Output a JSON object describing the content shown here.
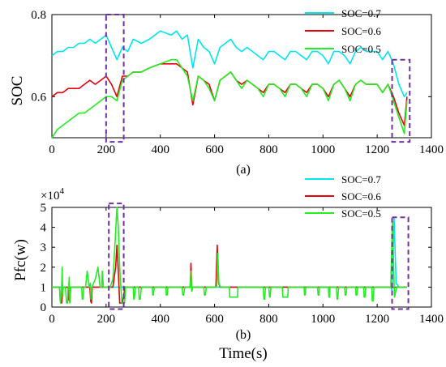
{
  "chart_data": [
    {
      "type": "line",
      "panel_label": "(a)",
      "ylabel": "SOC",
      "xlim": [
        0,
        1400
      ],
      "ylim": [
        0.5,
        0.8
      ],
      "x_ticks": [
        "0",
        "200",
        "400",
        "600",
        "800",
        "1000",
        "1200",
        "1400"
      ],
      "y_ticks": [
        "0.6",
        "0.8"
      ],
      "legend": "top-right",
      "series": [
        {
          "name": "SOC=0.7",
          "color": "#00e5ee",
          "x": [
            0,
            20,
            40,
            60,
            80,
            100,
            120,
            140,
            160,
            180,
            200,
            220,
            240,
            260,
            280,
            300,
            330,
            360,
            400,
            440,
            460,
            480,
            500,
            520,
            540,
            560,
            580,
            600,
            620,
            640,
            660,
            680,
            700,
            720,
            740,
            760,
            780,
            800,
            820,
            840,
            860,
            880,
            900,
            920,
            940,
            960,
            980,
            1000,
            1020,
            1040,
            1060,
            1080,
            1100,
            1120,
            1140,
            1160,
            1180,
            1200,
            1220,
            1240,
            1260,
            1280,
            1300,
            1310
          ],
          "y": [
            0.7,
            0.71,
            0.71,
            0.72,
            0.72,
            0.73,
            0.73,
            0.74,
            0.73,
            0.74,
            0.75,
            0.72,
            0.69,
            0.72,
            0.71,
            0.74,
            0.73,
            0.74,
            0.76,
            0.75,
            0.76,
            0.74,
            0.75,
            0.67,
            0.74,
            0.72,
            0.71,
            0.68,
            0.72,
            0.73,
            0.74,
            0.72,
            0.71,
            0.72,
            0.71,
            0.7,
            0.69,
            0.71,
            0.71,
            0.7,
            0.69,
            0.71,
            0.71,
            0.7,
            0.69,
            0.71,
            0.71,
            0.7,
            0.68,
            0.71,
            0.71,
            0.7,
            0.68,
            0.71,
            0.72,
            0.71,
            0.71,
            0.71,
            0.69,
            0.71,
            0.68,
            0.63,
            0.6,
            0.61
          ]
        },
        {
          "name": "SOC=0.6",
          "color": "#e8000b",
          "x": [
            0,
            20,
            40,
            60,
            80,
            100,
            120,
            140,
            160,
            180,
            200,
            220,
            240,
            260,
            280,
            300,
            330,
            360,
            400,
            440,
            460,
            480,
            500,
            520,
            540,
            560,
            580,
            600,
            620,
            640,
            660,
            680,
            700,
            720,
            740,
            760,
            780,
            800,
            820,
            840,
            860,
            880,
            900,
            920,
            940,
            960,
            980,
            1000,
            1020,
            1040,
            1060,
            1080,
            1100,
            1120,
            1140,
            1160,
            1180,
            1200,
            1220,
            1240,
            1260,
            1280,
            1300,
            1310
          ],
          "y": [
            0.6,
            0.61,
            0.61,
            0.62,
            0.62,
            0.62,
            0.63,
            0.64,
            0.63,
            0.64,
            0.65,
            0.63,
            0.6,
            0.65,
            0.65,
            0.66,
            0.66,
            0.67,
            0.68,
            0.68,
            0.68,
            0.67,
            0.66,
            0.58,
            0.65,
            0.64,
            0.63,
            0.59,
            0.64,
            0.65,
            0.66,
            0.64,
            0.63,
            0.64,
            0.63,
            0.62,
            0.61,
            0.63,
            0.63,
            0.62,
            0.61,
            0.63,
            0.63,
            0.62,
            0.61,
            0.63,
            0.63,
            0.62,
            0.6,
            0.63,
            0.64,
            0.62,
            0.6,
            0.63,
            0.64,
            0.63,
            0.63,
            0.63,
            0.61,
            0.63,
            0.6,
            0.56,
            0.53,
            0.6
          ]
        },
        {
          "name": "SOC=0.5",
          "color": "#22ee22",
          "x": [
            0,
            20,
            40,
            60,
            80,
            100,
            120,
            140,
            160,
            180,
            200,
            220,
            240,
            260,
            280,
            300,
            330,
            360,
            400,
            440,
            460,
            480,
            500,
            520,
            540,
            560,
            580,
            600,
            620,
            640,
            660,
            680,
            700,
            720,
            740,
            760,
            780,
            800,
            820,
            840,
            860,
            880,
            900,
            920,
            940,
            960,
            980,
            1000,
            1020,
            1040,
            1060,
            1080,
            1100,
            1120,
            1140,
            1160,
            1180,
            1200,
            1220,
            1240,
            1260,
            1280,
            1300,
            1310
          ],
          "y": [
            0.5,
            0.52,
            0.53,
            0.54,
            0.55,
            0.56,
            0.56,
            0.57,
            0.58,
            0.59,
            0.6,
            0.6,
            0.59,
            0.64,
            0.65,
            0.66,
            0.66,
            0.67,
            0.68,
            0.69,
            0.69,
            0.67,
            0.65,
            0.59,
            0.65,
            0.64,
            0.62,
            0.59,
            0.64,
            0.65,
            0.66,
            0.64,
            0.62,
            0.64,
            0.63,
            0.62,
            0.6,
            0.63,
            0.63,
            0.62,
            0.6,
            0.63,
            0.63,
            0.62,
            0.6,
            0.63,
            0.63,
            0.62,
            0.59,
            0.63,
            0.64,
            0.62,
            0.59,
            0.63,
            0.64,
            0.63,
            0.63,
            0.63,
            0.61,
            0.63,
            0.59,
            0.55,
            0.51,
            0.59
          ]
        }
      ],
      "highlight_boxes": [
        {
          "x": [
            200,
            265
          ],
          "y": [
            0.49,
            0.8
          ],
          "color": "#7030a0",
          "style": "dashed"
        },
        {
          "x": [
            1255,
            1320
          ],
          "y": [
            0.49,
            0.69
          ],
          "color": "#7030a0",
          "style": "dashed"
        }
      ]
    },
    {
      "type": "line",
      "panel_label": "(b)",
      "ylabel": "Pfc(w)",
      "xlabel": "Time(s)",
      "y_multiplier": "×10",
      "y_multiplier_exp": "4",
      "xlim": [
        0,
        1400
      ],
      "ylim": [
        0,
        50000
      ],
      "x_ticks": [
        "0",
        "200",
        "400",
        "600",
        "800",
        "1000",
        "1200",
        "1400"
      ],
      "y_ticks": [
        "0",
        "1",
        "2",
        "3",
        "4",
        "5"
      ],
      "legend": "top-right",
      "series": [
        {
          "name": "SOC=0.7",
          "color": "#00e5ee",
          "x": [
            0,
            1250,
            1255,
            1262,
            1270,
            1280,
            1290,
            1300,
            1310
          ],
          "y": [
            10000,
            10000,
            8000,
            45000,
            12000,
            10000,
            10000,
            10000,
            10000
          ]
        },
        {
          "name": "SOC=0.6",
          "color": "#e8000b",
          "x": [
            0,
            28,
            32,
            36,
            40,
            60,
            62,
            65,
            68,
            140,
            143,
            146,
            149,
            225,
            235,
            240,
            245,
            250,
            260,
            270,
            510,
            513,
            516,
            519,
            605,
            610,
            615,
            620,
            1310
          ],
          "y": [
            10000,
            10000,
            3000,
            2000,
            10000,
            10000,
            4000,
            3000,
            10000,
            10000,
            3000,
            2000,
            10000,
            10000,
            20000,
            31000,
            18000,
            2000,
            2000,
            10000,
            10000,
            22000,
            8000,
            10000,
            10000,
            31000,
            12000,
            10000,
            10000
          ]
        },
        {
          "name": "SOC=0.5",
          "color": "#22ee22",
          "x": [
            0,
            28,
            30,
            32,
            36,
            38,
            40,
            42,
            50,
            54,
            58,
            60,
            62,
            64,
            66,
            70,
            75,
            80,
            110,
            112,
            114,
            118,
            124,
            130,
            138,
            140,
            142,
            144,
            148,
            160,
            170,
            178,
            184,
            186,
            190,
            200,
            215,
            225,
            232,
            240,
            245,
            250,
            258,
            268,
            272,
            280,
            300,
            302,
            304,
            308,
            320,
            322,
            326,
            330,
            370,
            372,
            374,
            378,
            420,
            422,
            425,
            428,
            480,
            483,
            486,
            490,
            510,
            513,
            516,
            520,
            560,
            563,
            566,
            570,
            608,
            612,
            616,
            622,
            655,
            656,
            685,
            686,
            780,
            782,
            785,
            788,
            800,
            803,
            805,
            808,
            850,
            852,
            870,
            872,
            930,
            932,
            934,
            937,
            980,
            982,
            985,
            987,
            1020,
            1022,
            1024,
            1026,
            1050,
            1052,
            1054,
            1058,
            1080,
            1082,
            1085,
            1088,
            1120,
            1122,
            1125,
            1128,
            1150,
            1152,
            1155,
            1158,
            1180,
            1182,
            1185,
            1188,
            1250,
            1256,
            1264,
            1272,
            1280,
            1290,
            1300,
            1310
          ],
          "y": [
            10000,
            10000,
            4000,
            2000,
            10000,
            20000,
            5000,
            10000,
            10000,
            2000,
            2000,
            10000,
            10000,
            15000,
            2000,
            10000,
            10000,
            10000,
            10000,
            4000,
            4000,
            10000,
            10000,
            18000,
            10000,
            10000,
            12000,
            4000,
            10000,
            14000,
            20000,
            10000,
            10000,
            18000,
            10000,
            10000,
            10000,
            14000,
            30000,
            50000,
            40000,
            20000,
            2000,
            2000,
            10000,
            10000,
            10000,
            4000,
            4000,
            10000,
            10000,
            4000,
            4000,
            10000,
            10000,
            6000,
            6000,
            10000,
            10000,
            6000,
            6000,
            10000,
            10000,
            6000,
            6000,
            10000,
            10000,
            18000,
            8000,
            10000,
            10000,
            6000,
            6000,
            10000,
            10000,
            27000,
            12000,
            10000,
            10000,
            5000,
            5000,
            10000,
            10000,
            4000,
            4000,
            10000,
            10000,
            5000,
            5000,
            10000,
            10000,
            5000,
            5000,
            10000,
            10000,
            6000,
            6000,
            10000,
            10000,
            6000,
            6000,
            10000,
            10000,
            5000,
            5000,
            10000,
            10000,
            4000,
            4000,
            10000,
            10000,
            6000,
            6000,
            10000,
            10000,
            6000,
            6000,
            10000,
            10000,
            5000,
            5000,
            10000,
            10000,
            3000,
            3000,
            10000,
            10000,
            43000,
            5000,
            10000,
            10000,
            10000,
            10000,
            10000
          ]
        }
      ],
      "highlight_boxes": [
        {
          "x": [
            210,
            265
          ],
          "y": [
            -1000,
            52000
          ],
          "color": "#7030a0",
          "style": "dashed"
        },
        {
          "x": [
            1255,
            1315
          ],
          "y": [
            -1000,
            45000
          ],
          "color": "#7030a0",
          "style": "dashed"
        }
      ]
    }
  ]
}
